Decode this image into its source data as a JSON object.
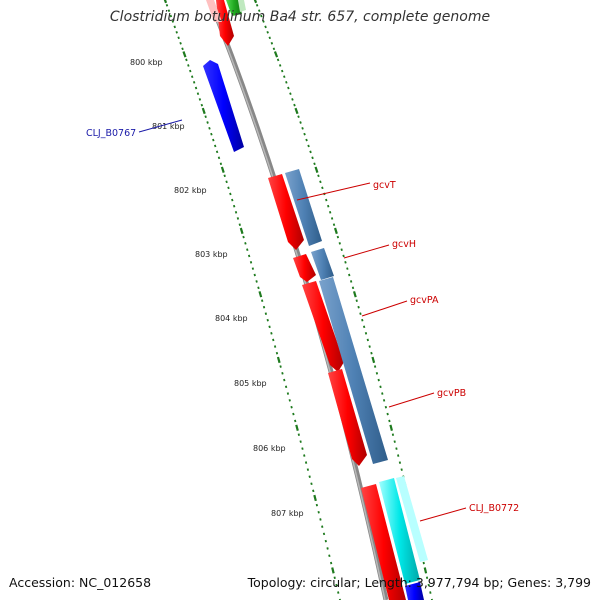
{
  "title": "Clostridium botulinum Ba4 str. 657, complete genome",
  "footer": {
    "accession": "Accession: NC_012658",
    "summary": "Topology: circular; Length: 3,977,794 bp; Genes: 3,799"
  },
  "scale": {
    "unit": "kbp",
    "ticks": [
      "800 kbp",
      "801 kbp",
      "802 kbp",
      "803 kbp",
      "804 kbp",
      "805 kbp",
      "806 kbp",
      "807 kbp"
    ]
  },
  "genes": [
    {
      "name": "CLJ_B0767",
      "color": "#1a1aa8"
    },
    {
      "name": "gcvT",
      "color": "#cc0000"
    },
    {
      "name": "gcvH",
      "color": "#cc0000"
    },
    {
      "name": "gcvPA",
      "color": "#cc0000"
    },
    {
      "name": "gcvPB",
      "color": "#cc0000"
    },
    {
      "name": "CLJ_B0772",
      "color": "#cc0000"
    }
  ],
  "colors": {
    "backbone": "#888888",
    "tick_marks": "#1e7a1e",
    "cds_forward": "#ff0000",
    "cds_reverse": "#0000ff",
    "cog_steelblue": "#4f81b4",
    "cog_cyan": "#00e0e0",
    "cog_green": "#22aa22"
  }
}
